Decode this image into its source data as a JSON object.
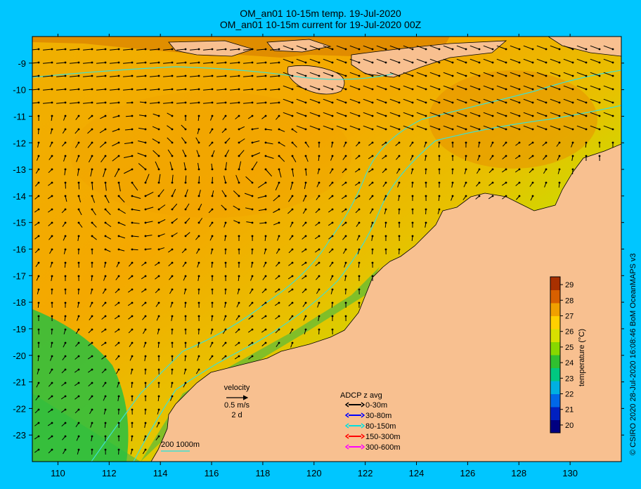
{
  "titles": {
    "line1": "OM_an01 10-15m temp. 19-Jul-2020",
    "line2": "OM_an01 10-15m current for 19-Jul-2020 00Z"
  },
  "side_text": "© CSIRO 2020   28-Jul-2020 16:08:46 BoM OceanMAPS v3",
  "axes": {
    "x_ticks": [
      "110",
      "112",
      "114",
      "116",
      "118",
      "120",
      "122",
      "124",
      "126",
      "128",
      "130"
    ],
    "y_ticks": [
      "-9",
      "-10",
      "-11",
      "-12",
      "-13",
      "-14",
      "-15",
      "-16",
      "-17",
      "-18",
      "-19",
      "-20",
      "-21",
      "-22",
      "-23"
    ],
    "lon_range": [
      109,
      132
    ],
    "lat_range": [
      -24,
      -8
    ]
  },
  "velocity_key": {
    "title": "velocity",
    "speed": "0.5 m/s",
    "duration": "2 d"
  },
  "adcp_legend": {
    "title": "ADCP z avg",
    "items": [
      {
        "label": "0-30m",
        "color": "#000000"
      },
      {
        "label": "30-80m",
        "color": "#0000ff"
      },
      {
        "label": "80-150m",
        "color": "#00e0e0"
      },
      {
        "label": "150-300m",
        "color": "#ff0000"
      },
      {
        "label": "300-600m",
        "color": "#ff00ff"
      }
    ]
  },
  "isobath_label": "200  1000m",
  "colorbar": {
    "label": "temperature (°C)",
    "ticks": [
      "20",
      "21",
      "22",
      "23",
      "24",
      "25",
      "26",
      "27",
      "28",
      "29"
    ],
    "range": [
      19.5,
      29.5
    ],
    "colors": [
      "#000080",
      "#0020c0",
      "#0068e8",
      "#00b0e0",
      "#00c880",
      "#30c030",
      "#88d800",
      "#d8e000",
      "#ffd000",
      "#f0a000",
      "#d86000",
      "#a83000"
    ]
  },
  "colors": {
    "background": "#00c6ff",
    "land": "#f8c090",
    "isobath": "#40e0d0"
  }
}
